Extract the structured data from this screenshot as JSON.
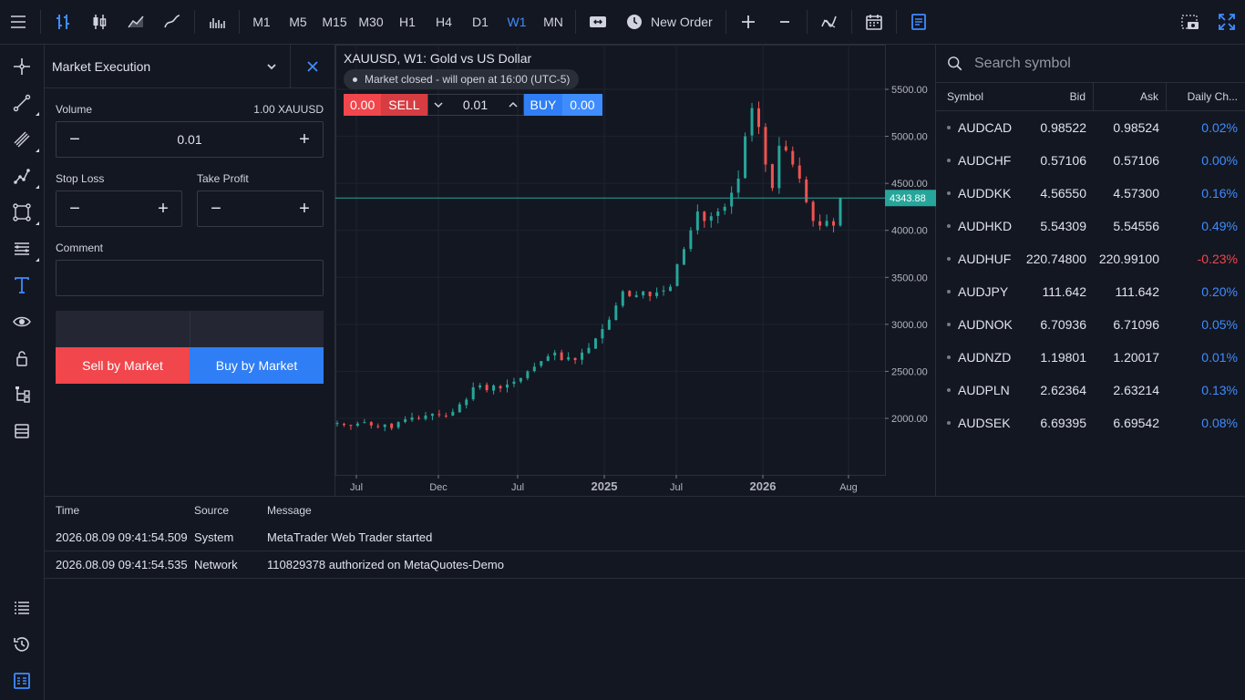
{
  "toolbar": {
    "timeframes": [
      "M1",
      "M5",
      "M15",
      "M30",
      "H1",
      "H4",
      "D1",
      "W1",
      "MN"
    ],
    "active_timeframe": "W1",
    "new_order_label": "New Order"
  },
  "order_panel": {
    "title": "Market Execution",
    "volume_label": "Volume",
    "volume_units": "1.00 XAUUSD",
    "volume_value": "0.01",
    "stop_loss_label": "Stop Loss",
    "take_profit_label": "Take Profit",
    "stop_loss_value": "",
    "take_profit_value": "",
    "comment_label": "Comment",
    "comment_value": "",
    "sell_button": "Sell by Market",
    "buy_button": "Buy by Market"
  },
  "chart": {
    "title": "XAUUSD, W1: Gold vs US Dollar",
    "market_status": "Market closed - will open at 16:00 (UTC-5)",
    "quick_trade": {
      "sell_price": "0.00",
      "sell_label": "SELL",
      "volume": "0.01",
      "buy_label": "BUY",
      "buy_price": "0.00"
    },
    "current_price_label": "4343.88"
  },
  "chart_data": {
    "type": "candlestick",
    "symbol": "XAUUSD",
    "timeframe": "W1",
    "y_ticks": [
      "5500.00",
      "5000.00",
      "4500.00",
      "4000.00",
      "3500.00",
      "3000.00",
      "2500.00",
      "2000.00"
    ],
    "ylim": [
      1600,
      5900
    ],
    "x_ticks": [
      "Jul",
      "Dec",
      "Jul",
      "2025",
      "Jul",
      "2026",
      "Aug"
    ],
    "x_ticks_bold": [
      false,
      false,
      false,
      true,
      false,
      true,
      false
    ],
    "current_price": 4343.88,
    "colors": {
      "up": "#26a69a",
      "down": "#ef5350",
      "price_line": "#26a69a"
    },
    "weekly_close_path": [
      1950,
      1930,
      1920,
      1945,
      1960,
      1925,
      1915,
      1935,
      1895,
      1960,
      1990,
      2010,
      2000,
      2030,
      2050,
      2035,
      2025,
      2070,
      2150,
      2200,
      2330,
      2350,
      2300,
      2350,
      2320,
      2360,
      2390,
      2430,
      2500,
      2550,
      2610,
      2660,
      2700,
      2620,
      2650,
      2620,
      2700,
      2750,
      2850,
      2950,
      3050,
      3200,
      3350,
      3300,
      3310,
      3350,
      3300,
      3340,
      3360,
      3400,
      3640,
      3800,
      4000,
      4200,
      4100,
      4150,
      4200,
      4250,
      4400,
      4550,
      5000,
      5300,
      5100,
      4700,
      4450,
      4900,
      4850,
      4700,
      4550,
      4300,
      4100,
      4050,
      4100,
      4050,
      4343
    ]
  },
  "market_watch": {
    "search_placeholder": "Search symbol",
    "headers": {
      "symbol": "Symbol",
      "bid": "Bid",
      "ask": "Ask",
      "change": "Daily Ch..."
    },
    "rows": [
      {
        "symbol": "AUDCAD",
        "bid": "0.98522",
        "ask": "0.98524",
        "change": "0.02%",
        "dir": "pos"
      },
      {
        "symbol": "AUDCHF",
        "bid": "0.57106",
        "ask": "0.57106",
        "change": "0.00%",
        "dir": "pos"
      },
      {
        "symbol": "AUDDKK",
        "bid": "4.56550",
        "ask": "4.57300",
        "change": "0.16%",
        "dir": "pos"
      },
      {
        "symbol": "AUDHKD",
        "bid": "5.54309",
        "ask": "5.54556",
        "change": "0.49%",
        "dir": "pos"
      },
      {
        "symbol": "AUDHUF",
        "bid": "220.74800",
        "ask": "220.99100",
        "change": "-0.23%",
        "dir": "neg"
      },
      {
        "symbol": "AUDJPY",
        "bid": "111.642",
        "ask": "111.642",
        "change": "0.20%",
        "dir": "pos"
      },
      {
        "symbol": "AUDNOK",
        "bid": "6.70936",
        "ask": "6.71096",
        "change": "0.05%",
        "dir": "pos"
      },
      {
        "symbol": "AUDNZD",
        "bid": "1.19801",
        "ask": "1.20017",
        "change": "0.01%",
        "dir": "pos"
      },
      {
        "symbol": "AUDPLN",
        "bid": "2.62364",
        "ask": "2.63214",
        "change": "0.13%",
        "dir": "pos"
      },
      {
        "symbol": "AUDSEK",
        "bid": "6.69395",
        "ask": "6.69542",
        "change": "0.08%",
        "dir": "pos"
      }
    ]
  },
  "journal": {
    "headers": {
      "time": "Time",
      "source": "Source",
      "message": "Message"
    },
    "rows": [
      {
        "time": "2026.08.09 09:41:54.509",
        "source": "System",
        "message": "MetaTrader Web Trader started"
      },
      {
        "time": "2026.08.09 09:41:54.535",
        "source": "Network",
        "message": "110829378 authorized on MetaQuotes-Demo"
      }
    ]
  }
}
